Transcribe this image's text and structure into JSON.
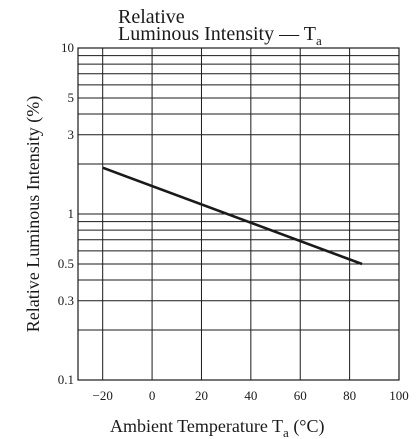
{
  "chart_data": {
    "type": "line",
    "title_line1": "Relative",
    "title_line2": "Luminous Intensity — T",
    "title_subscript": "a",
    "xlabel": "Ambient Temperature  T",
    "xlabel_subscript": "a",
    "xlabel_unit": "  (°C)",
    "ylabel": "Relative Luminous Intensity  (%)",
    "xlim": [
      -30,
      100
    ],
    "ylim": [
      0.1,
      10
    ],
    "yscale": "log",
    "grid": true,
    "x_ticks": [
      -20,
      0,
      20,
      40,
      60,
      80,
      100
    ],
    "x_tick_labels": [
      "−20",
      "0",
      "20",
      "40",
      "60",
      "80",
      "100"
    ],
    "y_ticks": [
      0.1,
      0.3,
      0.5,
      1,
      3,
      5,
      10
    ],
    "y_tick_labels": [
      "0.1",
      "0.3",
      "0.5",
      "1",
      "3",
      "5",
      "10"
    ],
    "y_grid": [
      0.1,
      0.2,
      0.3,
      0.4,
      0.5,
      0.6,
      0.7,
      0.8,
      0.9,
      1,
      2,
      3,
      4,
      5,
      6,
      7,
      8,
      9,
      10
    ],
    "series": [
      {
        "x": [
          -20,
          85
        ],
        "y": [
          1.9,
          0.5
        ]
      }
    ]
  }
}
